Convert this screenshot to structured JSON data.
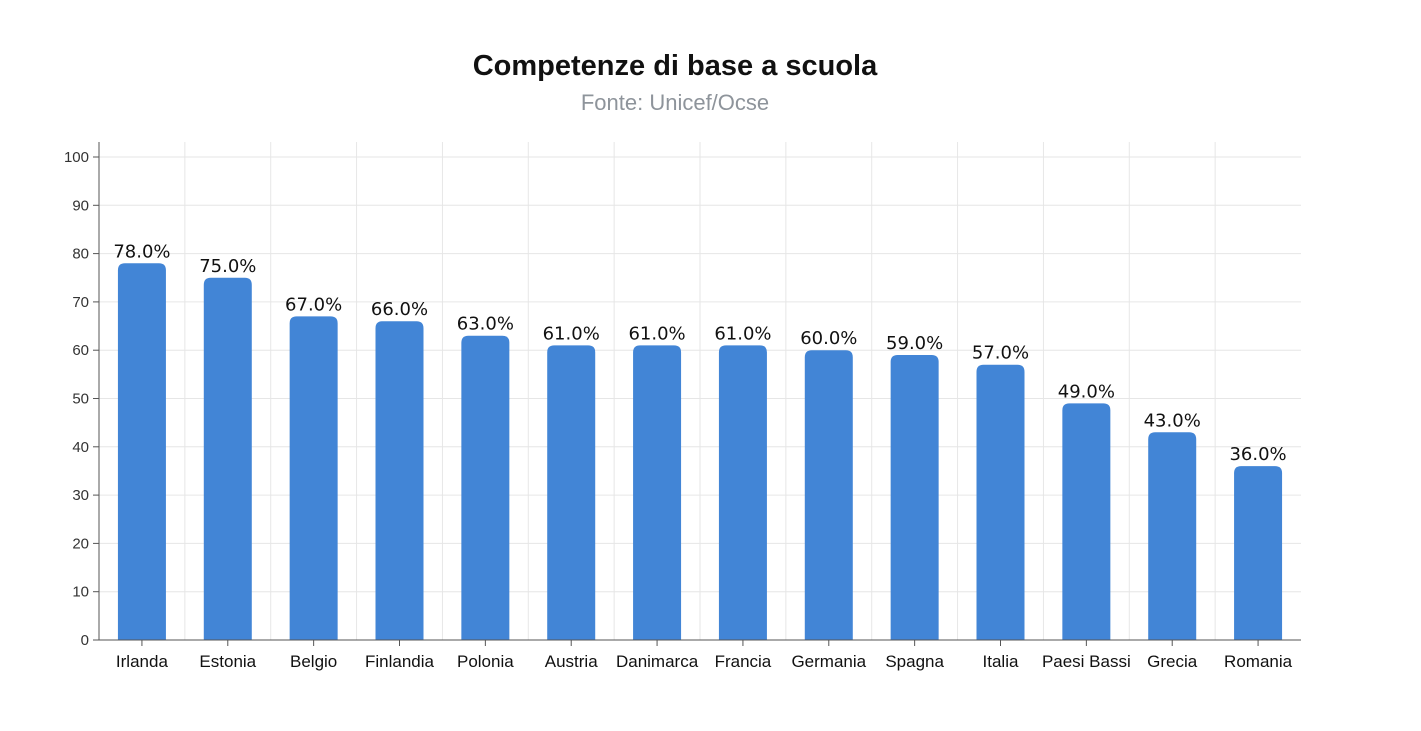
{
  "chart_data": {
    "type": "bar",
    "title": "Competenze di base a scuola",
    "subtitle": "Fonte: Unicef/Ocse",
    "xlabel": "",
    "ylabel": "",
    "ylim": [
      0,
      100
    ],
    "yticks": [
      0,
      10,
      20,
      30,
      40,
      50,
      60,
      70,
      80,
      90,
      100
    ],
    "categories": [
      "Irlanda",
      "Estonia",
      "Belgio",
      "Finlandia",
      "Polonia",
      "Austria",
      "Danimarca",
      "Francia",
      "Germania",
      "Spagna",
      "Italia",
      "Paesi Bassi",
      "Grecia",
      "Romania"
    ],
    "values": [
      78,
      75,
      67,
      66,
      63,
      61,
      61,
      61,
      60,
      59,
      57,
      49,
      43,
      36
    ],
    "data_labels": [
      "78.0%",
      "75.0%",
      "67.0%",
      "66.0%",
      "63.0%",
      "61.0%",
      "61.0%",
      "61.0%",
      "60.0%",
      "59.0%",
      "57.0%",
      "49.0%",
      "43.0%",
      "36.0%"
    ],
    "grid": true,
    "bar_color": "#4285d6"
  }
}
